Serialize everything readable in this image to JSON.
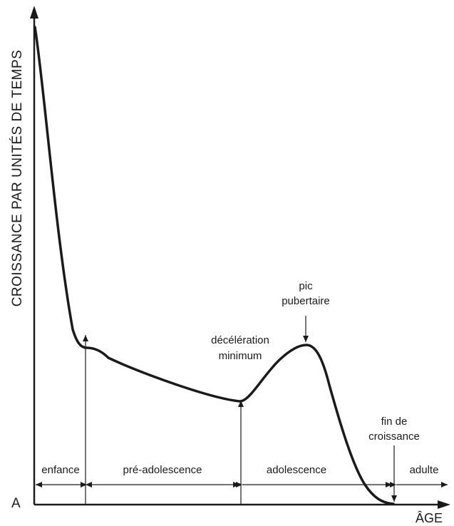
{
  "chart_data": {
    "type": "line",
    "ylabel": "CROISSANCE PAR UNITÉS DE TEMPS",
    "xlabel": "ÂGE",
    "origin_label": "A",
    "curve_color": "#1a1a1a",
    "annotations": {
      "peak": [
        "pic",
        "pubertaire"
      ],
      "minimum": [
        "décélération",
        "minimum"
      ],
      "end": [
        "fin de",
        "croissance"
      ]
    },
    "phases": [
      "enfance",
      "pré-adolescence",
      "adolescence",
      "adulte"
    ]
  }
}
